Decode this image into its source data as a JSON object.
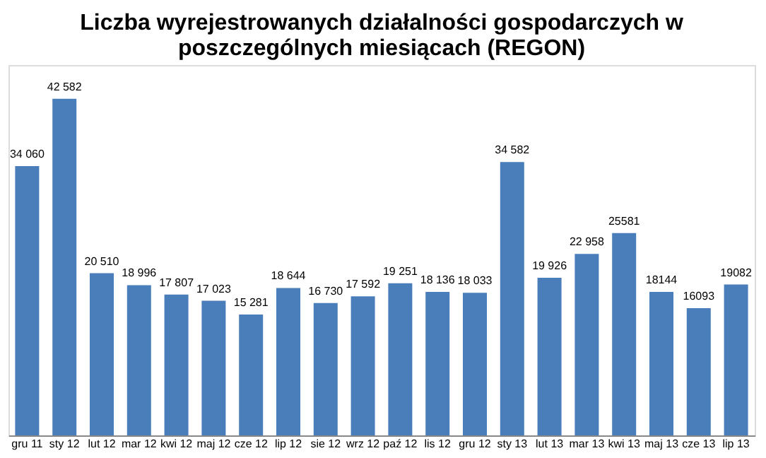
{
  "chart_data": {
    "type": "bar",
    "title": "Liczba wyrejestrowanych działalności gospodarczych w poszczególnych miesiącach (REGON)",
    "categories": [
      "gru 11",
      "sty 12",
      "lut 12",
      "mar 12",
      "kwi 12",
      "maj 12",
      "cze 12",
      "lip 12",
      "sie 12",
      "wrz 12",
      "paź 12",
      "lis 12",
      "gru 12",
      "sty 13",
      "lut 13",
      "mar 13",
      "kwi 13",
      "maj 13",
      "cze 13",
      "lip 13"
    ],
    "values": [
      34060,
      42582,
      20510,
      18996,
      17807,
      17023,
      15281,
      18644,
      16730,
      17592,
      19251,
      18136,
      18033,
      34582,
      19926,
      22958,
      25581,
      18144,
      16093,
      19082
    ],
    "value_labels": [
      "34 060",
      "42 582",
      "20 510",
      "18 996",
      "17 807",
      "17 023",
      "15 281",
      "18 644",
      "16 730",
      "17 592",
      "19 251",
      "18 136",
      "18 033",
      "34 582",
      "19 926",
      "22 958",
      "25581",
      "18144",
      "16093",
      "19082"
    ],
    "color": "#4a7ebb",
    "grid": false
  }
}
